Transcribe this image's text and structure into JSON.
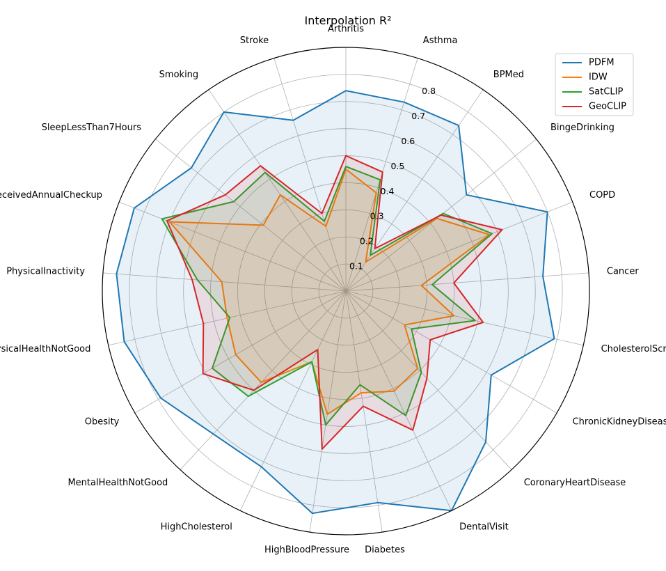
{
  "chart_data": {
    "type": "radar",
    "title": "Interpolation R²",
    "rlim": [
      0,
      0.9
    ],
    "rticks": [
      "0.1",
      "0.2",
      "0.3",
      "0.4",
      "0.5",
      "0.6",
      "0.7",
      "0.8"
    ],
    "grid": true,
    "legend_position": "top-right",
    "categories": [
      "Arthritis",
      "Asthma",
      "BPMed",
      "BingeDrinking",
      "COPD",
      "Cancer",
      "CholesterolScreening",
      "ChronicKidneyDisease",
      "CoronaryHeartDisease",
      "DentalVisit",
      "Diabetes",
      "HighBloodPressure",
      "HighCholesterol",
      "MentalHealthNotGood",
      "Obesity",
      "PhysicalHealthNotGood",
      "PhysicalInactivity",
      "ReceivedAnnualCheckup",
      "SleepLessThan7Hours",
      "Smoking",
      "Stroke"
    ],
    "series": [
      {
        "name": "PDFM",
        "color": "#1f77b4",
        "values": [
          0.74,
          0.73,
          0.74,
          0.57,
          0.8,
          0.73,
          0.79,
          0.62,
          0.76,
          0.9,
          0.79,
          0.83,
          0.72,
          0.72,
          0.79,
          0.84,
          0.85,
          0.84,
          0.73,
          0.8,
          0.66
        ]
      },
      {
        "name": "IDW",
        "color": "#ff7f0e",
        "values": [
          0.45,
          0.38,
          0.13,
          0.43,
          0.57,
          0.28,
          0.41,
          0.25,
          0.39,
          0.41,
          0.38,
          0.46,
          0.29,
          0.46,
          0.47,
          0.45,
          0.46,
          0.7,
          0.39,
          0.43,
          0.25
        ]
      },
      {
        "name": "SatCLIP",
        "color": "#2ca02c",
        "values": [
          0.46,
          0.43,
          0.16,
          0.46,
          0.58,
          0.32,
          0.49,
          0.28,
          0.41,
          0.51,
          0.35,
          0.5,
          0.29,
          0.53,
          0.57,
          0.44,
          0.55,
          0.73,
          0.53,
          0.53,
          0.27
        ]
      },
      {
        "name": "GeoCLIP",
        "color": "#d62728",
        "values": [
          0.5,
          0.46,
          0.19,
          0.45,
          0.62,
          0.4,
          0.52,
          0.36,
          0.44,
          0.57,
          0.43,
          0.59,
          0.24,
          0.5,
          0.61,
          0.54,
          0.57,
          0.71,
          0.57,
          0.56,
          0.3
        ]
      }
    ]
  }
}
